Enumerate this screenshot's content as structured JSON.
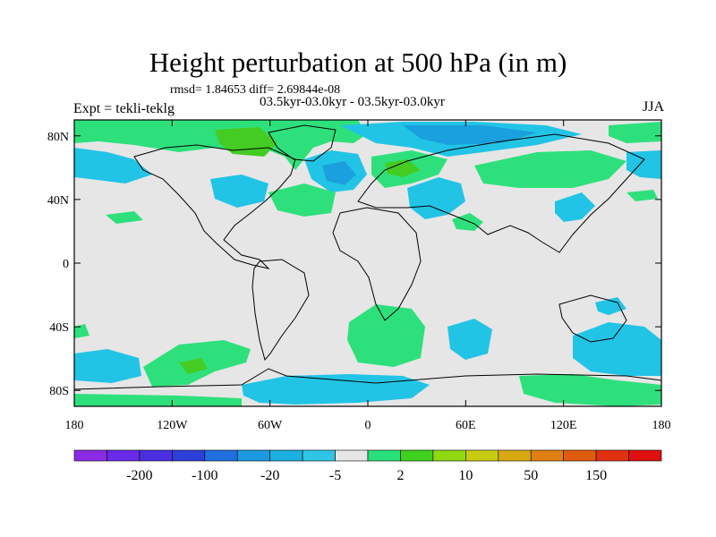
{
  "title": "Height perturbation at 500 hPa (in m)",
  "stats_text": "rmsd= 1.84653 diff= 2.69844e-08",
  "subtitle": "03.5kyr-03.0kyr - 03.5kyr-03.0kyr",
  "expt_label": "Expt = tekli-teklg",
  "season": "JJA",
  "axes": {
    "lon_ticks": [
      "180",
      "120W",
      "60W",
      "0",
      "60E",
      "120E",
      "180"
    ],
    "lat_ticks": [
      "80N",
      "40N",
      "0",
      "40S",
      "80S"
    ]
  },
  "colorbar": {
    "colors": [
      "#8a2be2",
      "#6a2be8",
      "#4a2fe0",
      "#2e3fd8",
      "#1f6fe0",
      "#1b9ae0",
      "#1cb0e0",
      "#2fc6e6",
      "#e6e6e6",
      "#28e07a",
      "#40d020",
      "#90d810",
      "#c8cc10",
      "#d8a810",
      "#e08010",
      "#e05a10",
      "#e03010",
      "#e01010"
    ],
    "labels": [
      "-200",
      "-100",
      "-20",
      "-5",
      "2",
      "10",
      "50",
      "150"
    ]
  },
  "map_colors": {
    "background": "#e6e6e6",
    "positive_light": "#2ee07c",
    "positive_mid": "#44cc22",
    "negative_light": "#22c4e6",
    "negative_mid": "#1aa0de"
  }
}
